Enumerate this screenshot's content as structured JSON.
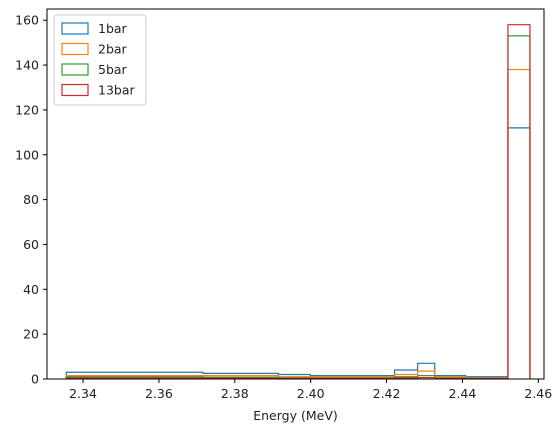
{
  "chart_data": {
    "type": "histogram",
    "title": "",
    "xlabel": "Energy (MeV)",
    "ylabel": "",
    "xlim": [
      2.3305,
      2.4615
    ],
    "ylim": [
      0,
      165
    ],
    "xticks": [
      2.34,
      2.36,
      2.38,
      2.4,
      2.42,
      2.44,
      2.46
    ],
    "xtick_labels": [
      "2.34",
      "2.36",
      "2.38",
      "2.40",
      "2.42",
      "2.44",
      "2.46"
    ],
    "yticks": [
      0,
      20,
      40,
      60,
      80,
      100,
      120,
      140,
      160
    ],
    "ytick_labels": [
      "0",
      "20",
      "40",
      "60",
      "80",
      "100",
      "120",
      "140",
      "160"
    ],
    "grid": false,
    "legend_position": "top-left",
    "bin_edges": [
      2.3356,
      2.3716,
      2.3915,
      2.3999,
      2.4221,
      2.4282,
      2.4327,
      2.4409,
      2.452,
      2.4578
    ],
    "series": [
      {
        "name": "1bar",
        "color": "#1f77b4",
        "counts": [
          3,
          2.5,
          2,
          1.5,
          4,
          7,
          1.5,
          1,
          112
        ]
      },
      {
        "name": "2bar",
        "color": "#ff7f0e",
        "counts": [
          1.5,
          1.5,
          1,
          1,
          2,
          3.5,
          1,
          0.5,
          138
        ]
      },
      {
        "name": "5bar",
        "color": "#2ca02c",
        "counts": [
          1,
          0.8,
          0.5,
          0.5,
          1,
          1.5,
          0.5,
          0.3,
          153
        ]
      },
      {
        "name": "13bar",
        "color": "#d62728",
        "counts": [
          0.5,
          0.4,
          0.3,
          0.3,
          0.5,
          0.6,
          0.3,
          0.2,
          158
        ]
      }
    ]
  }
}
